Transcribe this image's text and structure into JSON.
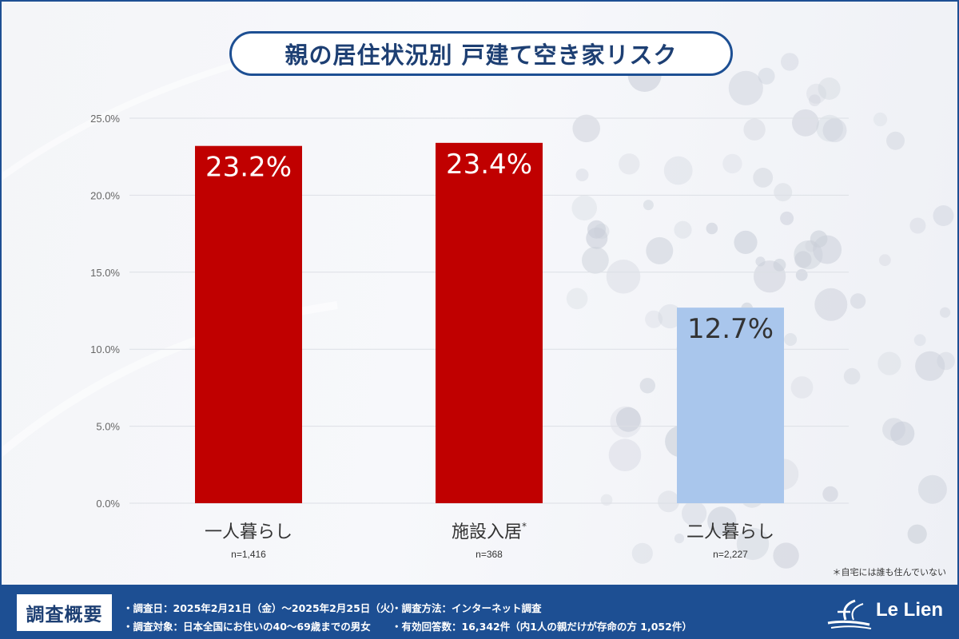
{
  "title": "親の居住状況別 戸建て空き家リスク",
  "chart_data": {
    "type": "bar",
    "categories": [
      "一人暮らし",
      "施設入居",
      "二人暮らし"
    ],
    "category_marks": [
      "",
      "*",
      ""
    ],
    "sample_sizes": [
      "n=1,416",
      "n=368",
      "n=2,227"
    ],
    "values": [
      23.2,
      23.4,
      12.7
    ],
    "value_labels": [
      "23.2%",
      "23.4%",
      "12.7%"
    ],
    "bar_colors": [
      "#c00000",
      "#c00000",
      "#a9c6ec"
    ],
    "value_label_colors": [
      "#ffffff",
      "#ffffff",
      "#333333"
    ],
    "ylim": [
      0,
      25
    ],
    "yticks": [
      0,
      5,
      10,
      15,
      20,
      25
    ],
    "ytick_labels": [
      "0.0%",
      "5.0%",
      "10.0%",
      "15.0%",
      "20.0%",
      "25.0%"
    ],
    "grid": true,
    "legend": "none"
  },
  "footnote": "＊自宅には誰も住んでいない",
  "footer": {
    "label": "調査概要",
    "items": [
      "・調査日：2025年2月21日（金）〜2025年2月25日（火）",
      "・調査対象：日本全国にお住いの40〜69歳までの男女",
      "・調査方法：インターネット調査",
      "・有効回答数：16,342件（内1人の親だけが存命の方 1,052件）"
    ],
    "logo_text": "Le Lien"
  },
  "colors": {
    "brand_blue": "#1d4f93",
    "accent_red": "#c00000",
    "light_blue": "#a9c6ec"
  }
}
